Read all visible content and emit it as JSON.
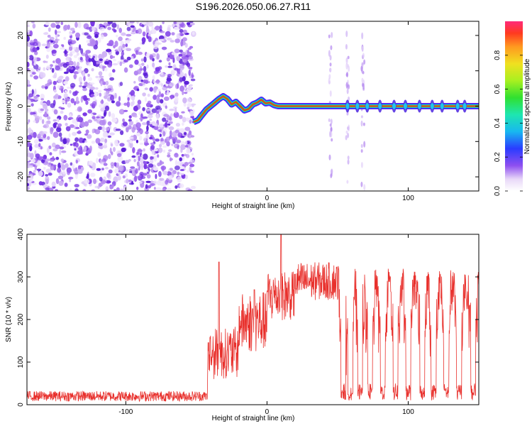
{
  "title": "S196.2026.050.06.27.R11",
  "chart_data": [
    {
      "type": "heatmap",
      "name": "spectrogram",
      "xlabel": "Height of straight line (km)",
      "ylabel": "Frequency (Hz)",
      "xlim": [
        -170,
        150
      ],
      "ylim": [
        -24,
        24
      ],
      "xticks": [
        -100,
        0,
        100
      ],
      "yticks": [
        -20,
        -10,
        0,
        10,
        20
      ],
      "noise_region": {
        "x_start": -170,
        "x_end": -52
      },
      "tone": {
        "x": [
          -52,
          -49,
          -46,
          -43,
          -40,
          -37,
          -34,
          -31,
          -28,
          -25,
          -22,
          -19,
          -16,
          -13,
          -10,
          -7,
          -4,
          -1,
          2,
          5,
          8,
          150
        ],
        "freq": [
          -4.5,
          -4,
          -2.5,
          -1,
          0,
          1,
          2,
          2.8,
          2,
          0.5,
          1.2,
          0,
          -1.2,
          -0.8,
          0.5,
          1,
          1.8,
          0.8,
          1,
          0.3,
          0,
          0
        ]
      },
      "tone_gaps_x": [
        57,
        64,
        71,
        80,
        90,
        98,
        108,
        117,
        124,
        135,
        140
      ],
      "colorbar": {
        "label": "Normalized spectral amplitude",
        "ticks": [
          "0.0",
          "0.2",
          "0.4",
          "0.6",
          "0.8"
        ],
        "range": [
          0,
          1
        ]
      }
    },
    {
      "type": "line",
      "name": "snr",
      "xlabel": "Height of straight line (km)",
      "ylabel": "SNR (10 * v/v)",
      "xlim": [
        -170,
        150
      ],
      "ylim": [
        0,
        400
      ],
      "xticks": [
        -100,
        0,
        100
      ],
      "yticks": [
        0,
        100,
        200,
        300,
        400
      ],
      "line_color": "#e8302c",
      "segments": [
        {
          "x_start": -170,
          "x_end": -42,
          "mean": 20,
          "jitter": 12
        },
        {
          "x_start": -42,
          "x_end": -20,
          "mean": 120,
          "jitter": 60
        },
        {
          "x_start": -20,
          "x_end": 0,
          "mean": 190,
          "jitter": 70
        },
        {
          "x_start": 0,
          "x_end": 20,
          "mean": 250,
          "jitter": 60
        },
        {
          "x_start": 20,
          "x_end": 52,
          "mean": 290,
          "jitter": 45
        },
        {
          "x_start": 52,
          "x_end": 150,
          "mean": 270,
          "jitter": 50
        }
      ],
      "dropouts_x": [
        54,
        59,
        66,
        73,
        82,
        91,
        100,
        110,
        118,
        127,
        136,
        146
      ],
      "spikes": [
        {
          "x": -34,
          "y": 335
        },
        {
          "x": 10,
          "y": 400
        },
        {
          "x": -9,
          "y": 270
        }
      ]
    }
  ]
}
